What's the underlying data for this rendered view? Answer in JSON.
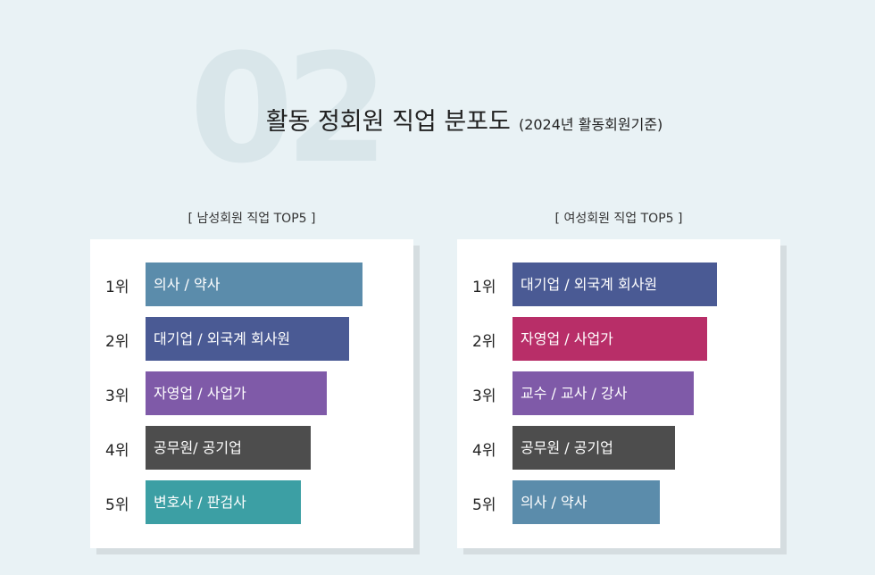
{
  "bg_number": "02",
  "title": {
    "main": "활동 정회원 직업 분포도",
    "sub": "(2024년 활동회원기준)"
  },
  "chart_data": [
    {
      "type": "bar",
      "title": "[ 남성회원 직업 TOP5 ]",
      "ranks": [
        "1위",
        "2위",
        "3위",
        "4위",
        "5위"
      ],
      "categories": [
        "의사 / 약사",
        "대기업 / 외국계 회사원",
        "자영업 / 사업가",
        "공무원/ 공기업",
        "변호사 / 판검사"
      ],
      "values": [
        5,
        4,
        3,
        2,
        1
      ],
      "colors": [
        "#5b8cab",
        "#4a5a94",
        "#7f5aa8",
        "#4d4d4d",
        "#3c9fa4"
      ]
    },
    {
      "type": "bar",
      "title": "[ 여성회원 직업 TOP5 ]",
      "ranks": [
        "1위",
        "2위",
        "3위",
        "4위",
        "5위"
      ],
      "categories": [
        "대기업 / 외국계 회사원",
        "자영업 / 사업가",
        "교수 / 교사 / 강사",
        "공무원 / 공기업",
        "의사 / 약사"
      ],
      "values": [
        5,
        4,
        3,
        2,
        1
      ],
      "colors": [
        "#4a5a94",
        "#b82e68",
        "#7f5aa8",
        "#4d4d4d",
        "#5b8cab"
      ]
    }
  ]
}
